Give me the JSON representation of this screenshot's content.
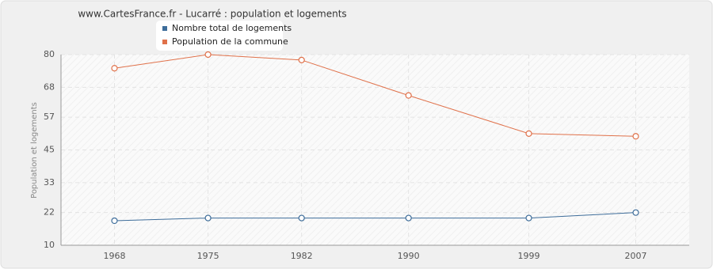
{
  "chart_data": {
    "type": "line",
    "title": "www.CartesFrance.fr - Lucarré : population et logements",
    "y_label": "Population et logements",
    "x": [
      1968,
      1975,
      1982,
      1990,
      1999,
      2007
    ],
    "series": [
      {
        "name": "Nombre total de logements",
        "color": "#3e6d9a",
        "values": [
          19,
          20,
          20,
          20,
          20,
          22
        ]
      },
      {
        "name": "Population de la commune",
        "color": "#e0714a",
        "values": [
          75,
          80,
          78,
          65,
          51,
          50
        ]
      }
    ],
    "xlim": [
      1964,
      2011
    ],
    "xticks": [
      1968,
      1975,
      1982,
      1990,
      1999,
      2007
    ],
    "ylim": [
      10,
      80
    ],
    "yticks": [
      10,
      22,
      33,
      45,
      57,
      68,
      80
    ],
    "grid": true
  }
}
